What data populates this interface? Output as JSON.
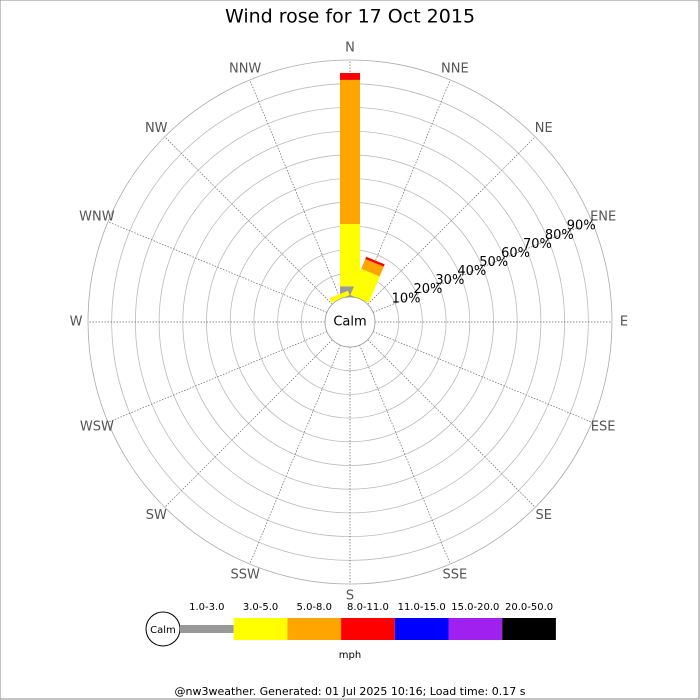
{
  "chart_data": {
    "type": "windrose",
    "title": "Wind rose for 17 Oct 2015",
    "directions": [
      "N",
      "NNE",
      "NE",
      "ENE",
      "E",
      "ESE",
      "SE",
      "SSE",
      "S",
      "SSW",
      "SW",
      "WSW",
      "W",
      "WNW",
      "NW",
      "NNW"
    ],
    "calm_label": "Calm",
    "series": [
      {
        "name": "1.0-3.0",
        "color": "#999999",
        "values": [
          4.5,
          0,
          0,
          0,
          0,
          0,
          0,
          0,
          0,
          0,
          0,
          0,
          0,
          0,
          0,
          0
        ]
      },
      {
        "name": "3.0-5.0",
        "color": "#ffff00",
        "values": [
          26.3,
          12,
          0,
          0,
          0,
          0,
          0,
          0,
          0,
          0,
          0,
          0,
          0,
          0,
          0,
          2
        ]
      },
      {
        "name": "5.0-8.0",
        "color": "#ffa500",
        "values": [
          60.8,
          4.5,
          0,
          0,
          0,
          0,
          0,
          0,
          0,
          0,
          0,
          0,
          0,
          0,
          0,
          0
        ]
      },
      {
        "name": "8.0-11.0",
        "color": "#ff0000",
        "values": [
          2.9,
          1,
          0,
          0,
          0,
          0,
          0,
          0,
          0,
          0,
          0,
          0,
          0,
          0,
          0,
          0
        ]
      },
      {
        "name": "11.0-15.0",
        "color": "#0000ff",
        "values": [
          0,
          0,
          0,
          0,
          0,
          0,
          0,
          0,
          0,
          0,
          0,
          0,
          0,
          0,
          0,
          0
        ]
      },
      {
        "name": "15.0-20.0",
        "color": "#a020f0",
        "values": [
          0,
          0,
          0,
          0,
          0,
          0,
          0,
          0,
          0,
          0,
          0,
          0,
          0,
          0,
          0,
          0
        ]
      },
      {
        "name": "20.0-50.0",
        "color": "#000000",
        "values": [
          0,
          0,
          0,
          0,
          0,
          0,
          0,
          0,
          0,
          0,
          0,
          0,
          0,
          0,
          0,
          0
        ]
      }
    ],
    "rlim": [
      0,
      100
    ],
    "rticks": [
      {
        "value": 10,
        "label": "10%"
      },
      {
        "value": 20,
        "label": "20%"
      },
      {
        "value": 30,
        "label": "30%"
      },
      {
        "value": 40,
        "label": "40%"
      },
      {
        "value": 50,
        "label": "50%"
      },
      {
        "value": 60,
        "label": "60%"
      },
      {
        "value": 70,
        "label": "70%"
      },
      {
        "value": 80,
        "label": "80%"
      },
      {
        "value": 90,
        "label": "90%"
      }
    ],
    "unit_label": "mph",
    "footer": "@nw3weather. Generated: 01 Jul 2025 10:16; Load time: 0.17 s"
  }
}
